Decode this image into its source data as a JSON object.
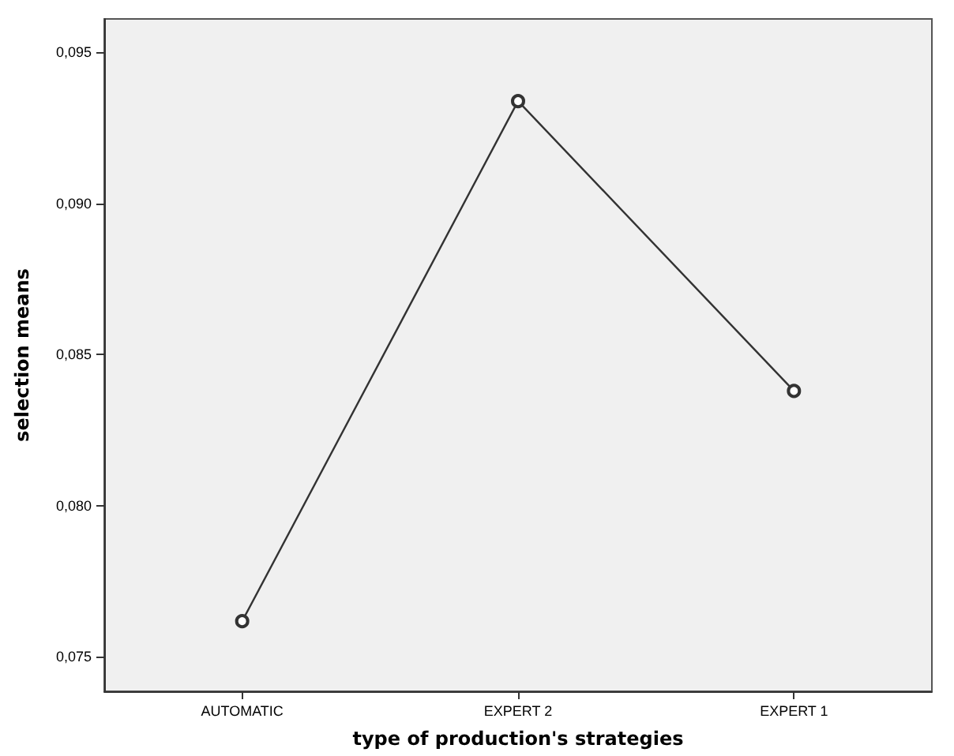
{
  "chart_data": {
    "type": "line",
    "xlabel": "type of production's strategies",
    "ylabel": "selection means",
    "categories": [
      "AUTOMATIC",
      "EXPERT 2",
      "EXPERT 1"
    ],
    "series": [
      {
        "color": "#333333",
        "values": [
          0.07617,
          0.09338,
          0.08379
        ]
      }
    ],
    "ylim": [
      0.07385,
      0.0961
    ],
    "yticks": [
      {
        "value": 0.075,
        "label": "0,075"
      },
      {
        "value": 0.08,
        "label": "0,080"
      },
      {
        "value": 0.085,
        "label": "0,085"
      },
      {
        "value": 0.09,
        "label": "0,090"
      },
      {
        "value": 0.095,
        "label": "0,095"
      }
    ],
    "grid": false,
    "marker": "circle",
    "line_style": "solid"
  }
}
